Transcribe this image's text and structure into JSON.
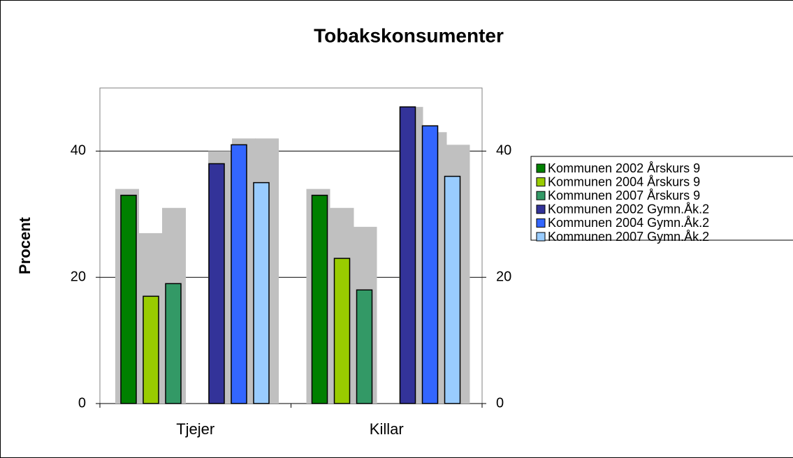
{
  "chart_data": {
    "type": "bar",
    "title": "Tobakskonsumenter",
    "y_label": "Procent",
    "categories": [
      "Tjejer",
      "Killar"
    ],
    "series": [
      {
        "color": "#c0c0c0",
        "values": [
          34,
          34
        ],
        "background": true
      },
      {
        "color": "#c0c0c0",
        "values": [
          27,
          31
        ],
        "background": true
      },
      {
        "color": "#c0c0c0",
        "values": [
          31,
          28
        ],
        "background": true
      },
      {
        "color": "#c0c0c0",
        "values": [
          40,
          47
        ],
        "background": true
      },
      {
        "color": "#c0c0c0",
        "values": [
          42,
          43
        ],
        "background": true
      },
      {
        "color": "#c0c0c0",
        "values": [
          42,
          41
        ],
        "background": true
      },
      {
        "name": "Kommunen 2002 Årskurs 9",
        "color": "#008000",
        "values": [
          33,
          33
        ]
      },
      {
        "name": "Kommunen 2004 Årskurs 9",
        "color": "#99cc00",
        "values": [
          17,
          23
        ]
      },
      {
        "name": "Kommunen 2007 Årskurs 9",
        "color": "#339966",
        "values": [
          19,
          18
        ]
      },
      {
        "name": "Kommunen 2002 Gymn.Åk.2",
        "color": "#333399",
        "values": [
          38,
          47
        ]
      },
      {
        "name": "Kommunen 2004 Gymn.Åk.2",
        "color": "#3366ff",
        "values": [
          41,
          44
        ]
      },
      {
        "name": "Kommunen 2007 Gymn.Åk.2",
        "color": "#99ccff",
        "values": [
          35,
          36
        ]
      }
    ],
    "ylim": [
      0,
      50
    ],
    "yticks": [
      0,
      20,
      40
    ],
    "y2lim": [
      0,
      50
    ],
    "y2ticks": [
      0,
      20,
      40
    ],
    "grid": true,
    "legend": "right"
  }
}
